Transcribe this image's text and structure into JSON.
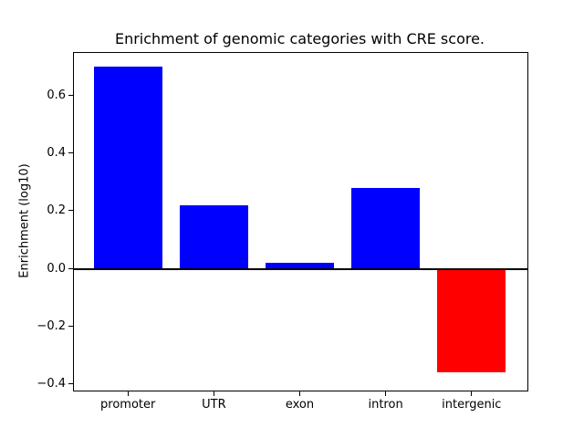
{
  "chart_data": {
    "type": "bar",
    "title": "Enrichment of genomic categories with CRE score.",
    "xlabel": "",
    "ylabel": "Enrichment (log10)",
    "categories": [
      "promoter",
      "UTR",
      "exon",
      "intron",
      "intergenic"
    ],
    "values": [
      0.7,
      0.22,
      0.02,
      0.28,
      -0.36
    ],
    "bar_colors": [
      "#0000ff",
      "#0000ff",
      "#0000ff",
      "#0000ff",
      "#ff0000"
    ],
    "positive_color": "#0000ff",
    "negative_color": "#ff0000",
    "yticks": [
      -0.4,
      -0.2,
      0.0,
      0.2,
      0.4,
      0.6
    ],
    "ylim": [
      -0.42,
      0.75
    ],
    "xlim": [
      -0.64,
      4.64
    ],
    "bar_width_fraction": 0.8,
    "zero_line": true,
    "grid": false,
    "legend": "none",
    "background_color": "#ffffff",
    "axis_color": "#000000"
  }
}
